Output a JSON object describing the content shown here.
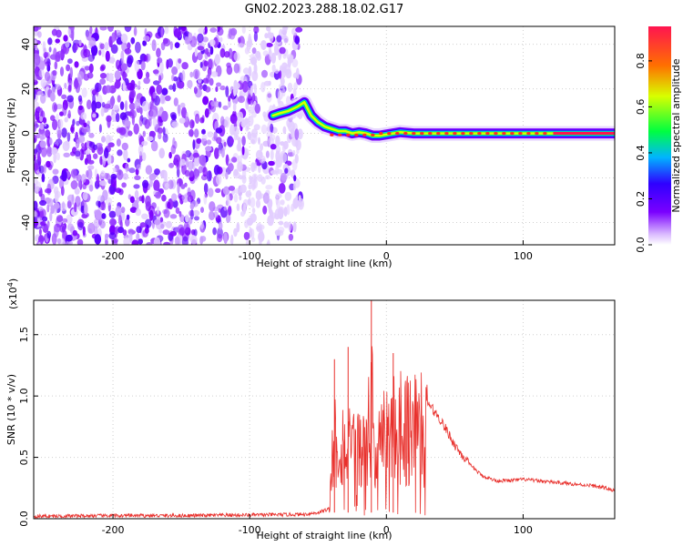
{
  "title": "GN02.2023.288.18.02.G17",
  "chart_data": [
    {
      "type": "heatmap",
      "xlabel": "Height of straight line (km)",
      "ylabel": "Frequency (Hz)",
      "xlim": [
        -258,
        167
      ],
      "ylim": [
        -50,
        48
      ],
      "xticks": [
        -200,
        -100,
        0,
        100
      ],
      "yticks": [
        -40,
        -20,
        0,
        20,
        40
      ],
      "colorbar": {
        "label": "Normalized spectral amplitude",
        "range": [
          0,
          0.95
        ],
        "ticks": [
          "0.0",
          "0.2",
          "0.4",
          "0.6",
          "0.8"
        ],
        "tick_values": [
          0,
          0.2,
          0.4,
          0.6,
          0.8
        ],
        "colors": [
          "#ffffff",
          "#7a00ff",
          "#2f00ff",
          "#00b4ff",
          "#00ff40",
          "#d8ff00",
          "#ff7000",
          "#ff1450"
        ]
      },
      "noise_region": {
        "x_range": [
          -258,
          -62
        ],
        "color": "#7a00ff"
      },
      "ridge": {
        "x": [
          -83,
          -78,
          -72,
          -65,
          -60,
          -55,
          -50,
          -45,
          -40,
          -35,
          -30,
          -25,
          -20,
          -15,
          -10,
          -5,
          0,
          5,
          10,
          20,
          40,
          60,
          80,
          100,
          120,
          140,
          167
        ],
        "y": [
          8,
          9,
          10,
          12,
          14,
          8,
          5,
          3,
          2,
          1,
          1,
          0,
          0.5,
          0,
          -1,
          -1,
          -0.5,
          0,
          0.5,
          0,
          0,
          0,
          0,
          0,
          0,
          0,
          0
        ]
      },
      "grid": true
    },
    {
      "type": "line",
      "xlabel": "Height of straight line (km)",
      "ylabel": "SNR (10 * v/v)",
      "scale_label": "(x10",
      "scale_exponent": "4",
      "scale_suffix": ")",
      "xlim": [
        -258,
        167
      ],
      "ylim": [
        0,
        1.78
      ],
      "xticks": [
        -200,
        -100,
        0,
        100
      ],
      "yticks": [
        "0.0",
        "0.5",
        "1.0",
        "1.5"
      ],
      "ytick_values": [
        0,
        0.5,
        1.0,
        1.5
      ],
      "series": [
        {
          "color": "#e8302c",
          "x": [
            -258,
            -200,
            -150,
            -100,
            -60,
            -50,
            -42,
            -40,
            -38,
            -35,
            -30,
            -25,
            -20,
            -15,
            -12,
            -10,
            -8,
            -5,
            0,
            5,
            10,
            15,
            20,
            25,
            30,
            40,
            50,
            60,
            70,
            80,
            90,
            100,
            110,
            120,
            130,
            140,
            150,
            160,
            167
          ],
          "y": [
            0.02,
            0.025,
            0.025,
            0.03,
            0.035,
            0.05,
            0.08,
            0.6,
            0.9,
            0.8,
            0.85,
            0.7,
            0.8,
            0.7,
            1.1,
            1.3,
            0.6,
            0.9,
            0.9,
            1.0,
            1.1,
            1.0,
            1.1,
            1.0,
            0.95,
            0.8,
            0.6,
            0.45,
            0.35,
            0.31,
            0.31,
            0.32,
            0.31,
            0.3,
            0.29,
            0.28,
            0.27,
            0.25,
            0.23
          ]
        }
      ],
      "spikes": [
        {
          "x": -11,
          "y": 1.78
        },
        {
          "x": -38,
          "y": 1.3
        },
        {
          "x": -28,
          "y": 1.4
        },
        {
          "x": 5,
          "y": 1.35
        }
      ],
      "grid": true
    }
  ]
}
